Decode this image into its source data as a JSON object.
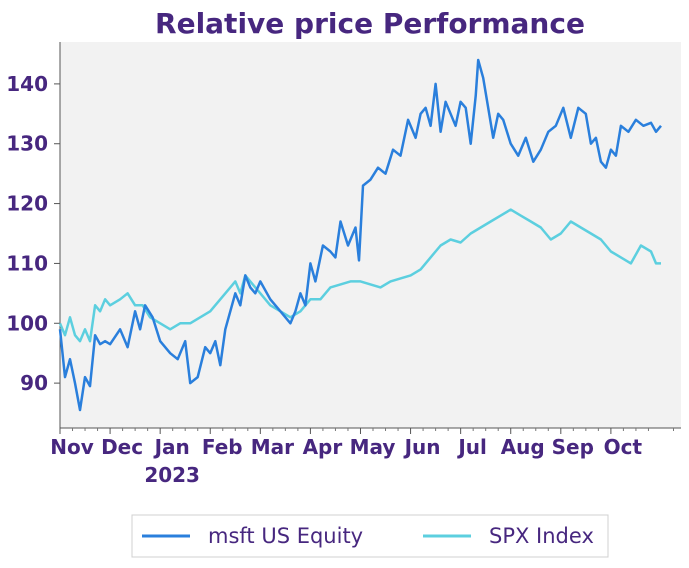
{
  "chart_data": {
    "type": "line",
    "title": "Relative price Performance",
    "xlabel": "",
    "ylabel": "",
    "ylim": [
      82.5,
      147
    ],
    "yticks": [
      90,
      100,
      110,
      120,
      130,
      140
    ],
    "x_months": [
      {
        "label": "Nov",
        "sublabel": ""
      },
      {
        "label": "Dec",
        "sublabel": ""
      },
      {
        "label": "Jan",
        "sublabel": "2023"
      },
      {
        "label": "Feb",
        "sublabel": ""
      },
      {
        "label": "Mar",
        "sublabel": ""
      },
      {
        "label": "Apr",
        "sublabel": ""
      },
      {
        "label": "May",
        "sublabel": ""
      },
      {
        "label": "Jun",
        "sublabel": ""
      },
      {
        "label": "Jul",
        "sublabel": ""
      },
      {
        "label": "Aug",
        "sublabel": ""
      },
      {
        "label": "Sep",
        "sublabel": ""
      },
      {
        "label": "Oct",
        "sublabel": ""
      }
    ],
    "x_range": [
      0,
      12.4
    ],
    "grid": false,
    "legend_position": "bottom-center",
    "series": [
      {
        "name": "msft US Equity",
        "color": "#2a7fdc",
        "x": [
          0,
          0.1,
          0.2,
          0.3,
          0.4,
          0.5,
          0.6,
          0.7,
          0.8,
          0.9,
          1.0,
          1.2,
          1.35,
          1.5,
          1.6,
          1.7,
          1.85,
          2.0,
          2.1,
          2.2,
          2.35,
          2.5,
          2.6,
          2.75,
          2.9,
          3.0,
          3.1,
          3.2,
          3.3,
          3.4,
          3.5,
          3.6,
          3.7,
          3.8,
          3.9,
          4.0,
          4.2,
          4.4,
          4.6,
          4.7,
          4.8,
          4.9,
          5.0,
          5.1,
          5.25,
          5.4,
          5.5,
          5.6,
          5.75,
          5.9,
          5.97,
          6.05,
          6.2,
          6.35,
          6.5,
          6.65,
          6.8,
          6.95,
          7.1,
          7.2,
          7.3,
          7.4,
          7.5,
          7.6,
          7.7,
          7.8,
          7.9,
          8.0,
          8.1,
          8.2,
          8.3,
          8.35,
          8.45,
          8.55,
          8.65,
          8.75,
          8.85,
          9.0,
          9.15,
          9.3,
          9.45,
          9.6,
          9.75,
          9.9,
          10.05,
          10.2,
          10.35,
          10.5,
          10.6,
          10.7,
          10.8,
          10.9,
          11.0,
          11.1,
          11.2,
          11.35,
          11.5,
          11.65,
          11.8,
          11.9,
          12.0
        ],
        "values": [
          99,
          91,
          94,
          90,
          85.5,
          91,
          89.5,
          98,
          96.5,
          97,
          96.5,
          99,
          96,
          102,
          99,
          103,
          101,
          97,
          96,
          95,
          94,
          97,
          90,
          91,
          96,
          95,
          97,
          93,
          99,
          102,
          105,
          103,
          108,
          106,
          105,
          107,
          104,
          102,
          100,
          102,
          105,
          103,
          110,
          107,
          113,
          112,
          111,
          117,
          113,
          116,
          110.5,
          123,
          124,
          126,
          125,
          129,
          128,
          134,
          131,
          135,
          136,
          133,
          140,
          132,
          137,
          135,
          133,
          137,
          136,
          130,
          138,
          144,
          141,
          136,
          131,
          135,
          134,
          130,
          128,
          131,
          127,
          129,
          132,
          133,
          136,
          131,
          136,
          135,
          130,
          131,
          127,
          126,
          129,
          128,
          133,
          132,
          134,
          133,
          133.5,
          132,
          133
        ]
      },
      {
        "name": "SPX Index",
        "color": "#5ccfdf",
        "x": [
          0,
          0.1,
          0.2,
          0.3,
          0.4,
          0.5,
          0.6,
          0.7,
          0.8,
          0.9,
          1.0,
          1.2,
          1.35,
          1.5,
          1.65,
          1.8,
          2.0,
          2.2,
          2.4,
          2.6,
          2.8,
          3.0,
          3.2,
          3.4,
          3.5,
          3.6,
          3.7,
          3.8,
          3.9,
          4.0,
          4.2,
          4.4,
          4.6,
          4.8,
          5.0,
          5.2,
          5.4,
          5.6,
          5.8,
          6.0,
          6.2,
          6.4,
          6.6,
          6.8,
          7.0,
          7.2,
          7.4,
          7.6,
          7.8,
          8.0,
          8.2,
          8.4,
          8.6,
          8.8,
          9.0,
          9.2,
          9.4,
          9.6,
          9.8,
          10.0,
          10.2,
          10.4,
          10.6,
          10.8,
          11.0,
          11.2,
          11.4,
          11.6,
          11.8,
          11.9,
          12.0
        ],
        "values": [
          100,
          98,
          101,
          98,
          97,
          99,
          97,
          103,
          102,
          104,
          103,
          104,
          105,
          103,
          103,
          101,
          100,
          99,
          100,
          100,
          101,
          102,
          104,
          106,
          107,
          105,
          108,
          107,
          106,
          105,
          103,
          102,
          101,
          102,
          104,
          104,
          106,
          106.5,
          107,
          107,
          106.5,
          106,
          107,
          107.5,
          108,
          109,
          111,
          113,
          114,
          113.5,
          115,
          116,
          117,
          118,
          119,
          118,
          117,
          116,
          114,
          115,
          117,
          116,
          115,
          114,
          112,
          111,
          110,
          113,
          112,
          110,
          110
        ]
      }
    ]
  }
}
